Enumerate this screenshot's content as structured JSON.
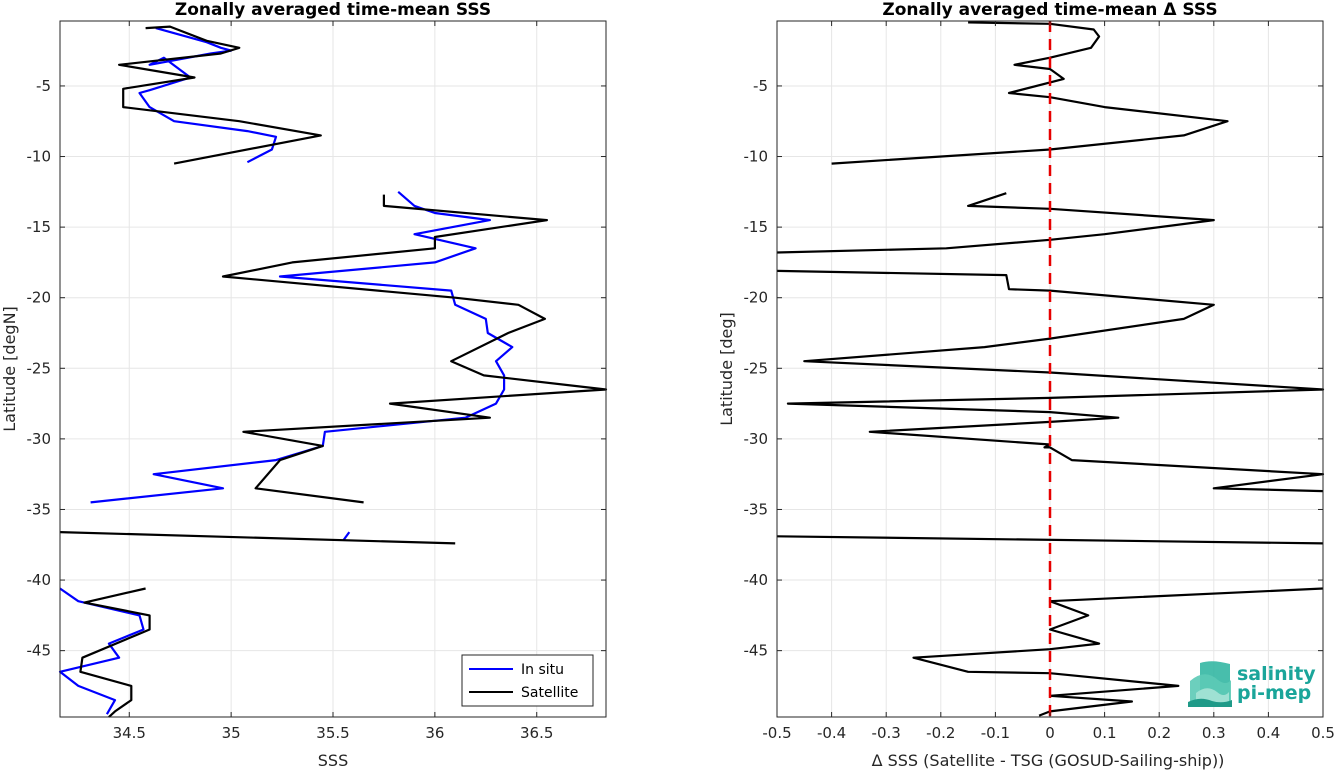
{
  "chart_data": [
    {
      "type": "line",
      "title": "Zonally averaged time-mean SSS",
      "xlabel": "SSS",
      "ylabel": "Latitude [degN]",
      "xlim": [
        34.16,
        36.84
      ],
      "ylim": [
        -49.7,
        -0.4
      ],
      "xticks": [
        34.5,
        35,
        35.5,
        36,
        36.5
      ],
      "xtick_labels": [
        "34.5",
        "35",
        "35.5",
        "36",
        "36.5"
      ],
      "yticks": [
        -5,
        -10,
        -15,
        -20,
        -25,
        -30,
        -35,
        -40,
        -45
      ],
      "ytick_labels": [
        "-5",
        "-10",
        "-15",
        "-20",
        "-25",
        "-30",
        "-35",
        "-40",
        "-45"
      ],
      "grid": true,
      "legend": "bottom-right",
      "series": [
        {
          "name": "In situ",
          "color": "#0000ff",
          "segments": [
            [
              [
                34.63,
                -0.9
              ],
              [
                34.88,
                -1.9
              ],
              [
                34.95,
                -2.3
              ],
              [
                35.0,
                -2.5
              ],
              [
                34.9,
                -2.7
              ],
              [
                34.6,
                -3.5
              ],
              [
                34.67,
                -3.0
              ],
              [
                34.8,
                -4.4
              ],
              [
                34.6,
                -5.3
              ],
              [
                34.55,
                -5.5
              ],
              [
                34.6,
                -6.5
              ],
              [
                34.72,
                -7.5
              ],
              [
                35.08,
                -8.2
              ],
              [
                35.22,
                -8.6
              ],
              [
                35.2,
                -9.5
              ],
              [
                35.08,
                -10.4
              ]
            ],
            [
              [
                35.82,
                -12.5
              ],
              [
                35.9,
                -13.5
              ],
              [
                36.0,
                -14.0
              ],
              [
                36.27,
                -14.5
              ],
              [
                35.9,
                -15.5
              ],
              [
                36.2,
                -16.5
              ],
              [
                36.0,
                -17.5
              ],
              [
                35.24,
                -18.5
              ],
              [
                36.08,
                -19.5
              ],
              [
                36.1,
                -20.5
              ],
              [
                36.25,
                -21.5
              ],
              [
                36.26,
                -22.5
              ],
              [
                36.38,
                -23.5
              ],
              [
                36.3,
                -24.5
              ],
              [
                36.34,
                -25.5
              ],
              [
                36.34,
                -26.5
              ],
              [
                36.3,
                -27.5
              ],
              [
                36.15,
                -28.5
              ],
              [
                35.46,
                -29.5
              ],
              [
                35.45,
                -30.5
              ],
              [
                35.22,
                -31.5
              ],
              [
                34.62,
                -32.5
              ],
              [
                34.96,
                -33.5
              ],
              [
                34.31,
                -34.5
              ]
            ],
            [
              [
                35.55,
                -37.2
              ],
              [
                35.58,
                -36.6
              ]
            ],
            [
              [
                34.16,
                -40.6
              ],
              [
                34.25,
                -41.5
              ],
              [
                34.55,
                -42.5
              ],
              [
                34.57,
                -43.5
              ],
              [
                34.4,
                -44.5
              ],
              [
                34.45,
                -45.5
              ],
              [
                34.16,
                -46.5
              ],
              [
                34.25,
                -47.5
              ],
              [
                34.43,
                -48.5
              ],
              [
                34.39,
                -49.5
              ]
            ]
          ]
        },
        {
          "name": "Satellite",
          "color": "#000000",
          "segments": [
            [
              [
                34.58,
                -0.9
              ],
              [
                34.7,
                -0.8
              ],
              [
                34.88,
                -1.8
              ],
              [
                35.04,
                -2.3
              ],
              [
                34.95,
                -2.7
              ],
              [
                34.45,
                -3.5
              ],
              [
                34.82,
                -4.4
              ],
              [
                34.47,
                -5.2
              ],
              [
                34.47,
                -6.5
              ],
              [
                35.04,
                -7.5
              ],
              [
                35.44,
                -8.5
              ],
              [
                34.72,
                -10.5
              ]
            ],
            [
              [
                35.75,
                -12.7
              ],
              [
                35.75,
                -13.5
              ],
              [
                36.55,
                -14.5
              ],
              [
                36.0,
                -15.7
              ],
              [
                36.0,
                -16.5
              ],
              [
                35.3,
                -17.5
              ],
              [
                34.96,
                -18.5
              ],
              [
                36.1,
                -20.0
              ],
              [
                36.41,
                -20.5
              ],
              [
                36.54,
                -21.5
              ],
              [
                36.36,
                -22.5
              ],
              [
                36.08,
                -24.5
              ],
              [
                36.24,
                -25.5
              ],
              [
                36.84,
                -26.5
              ],
              [
                35.78,
                -27.5
              ],
              [
                36.27,
                -28.5
              ],
              [
                35.06,
                -29.5
              ],
              [
                35.45,
                -30.5
              ],
              [
                35.24,
                -31.5
              ],
              [
                35.12,
                -33.5
              ],
              [
                35.65,
                -34.5
              ]
            ],
            [
              [
                34.16,
                -36.6
              ],
              [
                36.1,
                -37.4
              ]
            ],
            [
              [
                34.58,
                -40.6
              ],
              [
                34.28,
                -41.6
              ],
              [
                34.6,
                -42.5
              ],
              [
                34.6,
                -43.5
              ],
              [
                34.27,
                -45.5
              ],
              [
                34.26,
                -46.5
              ],
              [
                34.51,
                -47.5
              ],
              [
                34.51,
                -48.5
              ],
              [
                34.43,
                -49.3
              ],
              [
                34.4,
                -49.7
              ]
            ]
          ]
        }
      ]
    },
    {
      "type": "line",
      "title": "Zonally averaged time-mean Δ SSS",
      "xlabel": "Δ SSS (Satellite - TSG (GOSUD-Sailing-ship))",
      "ylabel": "Latitude [deg]",
      "xlim": [
        -0.5,
        0.5
      ],
      "ylim": [
        -49.7,
        -0.4
      ],
      "xticks": [
        -0.5,
        -0.4,
        -0.3,
        -0.2,
        -0.1,
        0,
        0.1,
        0.2,
        0.3,
        0.4,
        0.5
      ],
      "xtick_labels": [
        "-0.5",
        "-0.4",
        "-0.3",
        "-0.2",
        "-0.1",
        "0",
        "0.1",
        "0.2",
        "0.3",
        "0.4",
        "0.5"
      ],
      "yticks": [
        -5,
        -10,
        -15,
        -20,
        -25,
        -30,
        -35,
        -40,
        -45
      ],
      "ytick_labels": [
        "-5",
        "-10",
        "-15",
        "-20",
        "-25",
        "-30",
        "-35",
        "-40",
        "-45"
      ],
      "grid": true,
      "reference_line": {
        "x": 0,
        "color": "#e60000",
        "style": "dashed"
      },
      "series": [
        {
          "color": "#000000",
          "segments": [
            [
              [
                -0.15,
                -0.5
              ],
              [
                0.0,
                -0.6
              ],
              [
                0.08,
                -1.0
              ],
              [
                0.09,
                -1.5
              ],
              [
                0.075,
                -2.3
              ],
              [
                0.0,
                -3.0
              ],
              [
                -0.065,
                -3.5
              ],
              [
                0.0,
                -3.8
              ],
              [
                0.025,
                -4.5
              ],
              [
                -0.075,
                -5.5
              ],
              [
                0.0,
                -5.8
              ],
              [
                0.1,
                -6.5
              ],
              [
                0.325,
                -7.5
              ],
              [
                0.245,
                -8.5
              ],
              [
                0.0,
                -9.5
              ],
              [
                -0.4,
                -10.5
              ]
            ],
            [
              [
                -0.08,
                -12.6
              ],
              [
                -0.15,
                -13.5
              ],
              [
                0.0,
                -13.7
              ],
              [
                0.3,
                -14.5
              ],
              [
                0.1,
                -15.5
              ],
              [
                0.0,
                -15.9
              ],
              [
                -0.19,
                -16.5
              ],
              [
                -0.5,
                -16.8
              ]
            ],
            [
              [
                -0.5,
                -18.1
              ],
              [
                -0.08,
                -18.4
              ],
              [
                -0.075,
                -19.4
              ],
              [
                0.0,
                -19.5
              ],
              [
                0.3,
                -20.5
              ],
              [
                0.245,
                -21.5
              ],
              [
                0.0,
                -22.9
              ],
              [
                -0.12,
                -23.5
              ],
              [
                -0.45,
                -24.5
              ],
              [
                0.0,
                -25.3
              ],
              [
                0.5,
                -26.5
              ],
              [
                0.0,
                -27.1
              ],
              [
                -0.48,
                -27.5
              ],
              [
                0.0,
                -28.1
              ],
              [
                0.125,
                -28.5
              ],
              [
                0.0,
                -28.8
              ],
              [
                -0.33,
                -29.5
              ],
              [
                0.0,
                -30.4
              ],
              [
                -0.01,
                -30.6
              ],
              [
                0.0,
                -30.6
              ],
              [
                0.04,
                -31.5
              ],
              [
                0.5,
                -32.5
              ],
              [
                0.3,
                -33.5
              ],
              [
                0.5,
                -33.7
              ]
            ],
            [
              [
                -0.5,
                -36.9
              ],
              [
                0.5,
                -37.4
              ]
            ],
            [
              [
                0.5,
                -40.6
              ],
              [
                0.0,
                -41.5
              ],
              [
                0.07,
                -42.5
              ],
              [
                0.0,
                -43.5
              ],
              [
                0.09,
                -44.5
              ],
              [
                0.0,
                -44.9
              ],
              [
                -0.25,
                -45.5
              ],
              [
                -0.15,
                -46.5
              ],
              [
                0.0,
                -46.6
              ],
              [
                0.235,
                -47.5
              ],
              [
                0.0,
                -48.2
              ],
              [
                0.15,
                -48.6
              ],
              [
                0.0,
                -49.3
              ],
              [
                -0.02,
                -49.6
              ]
            ]
          ]
        }
      ]
    }
  ],
  "logo": {
    "line1": "salinity",
    "line2": "pi-mep"
  }
}
